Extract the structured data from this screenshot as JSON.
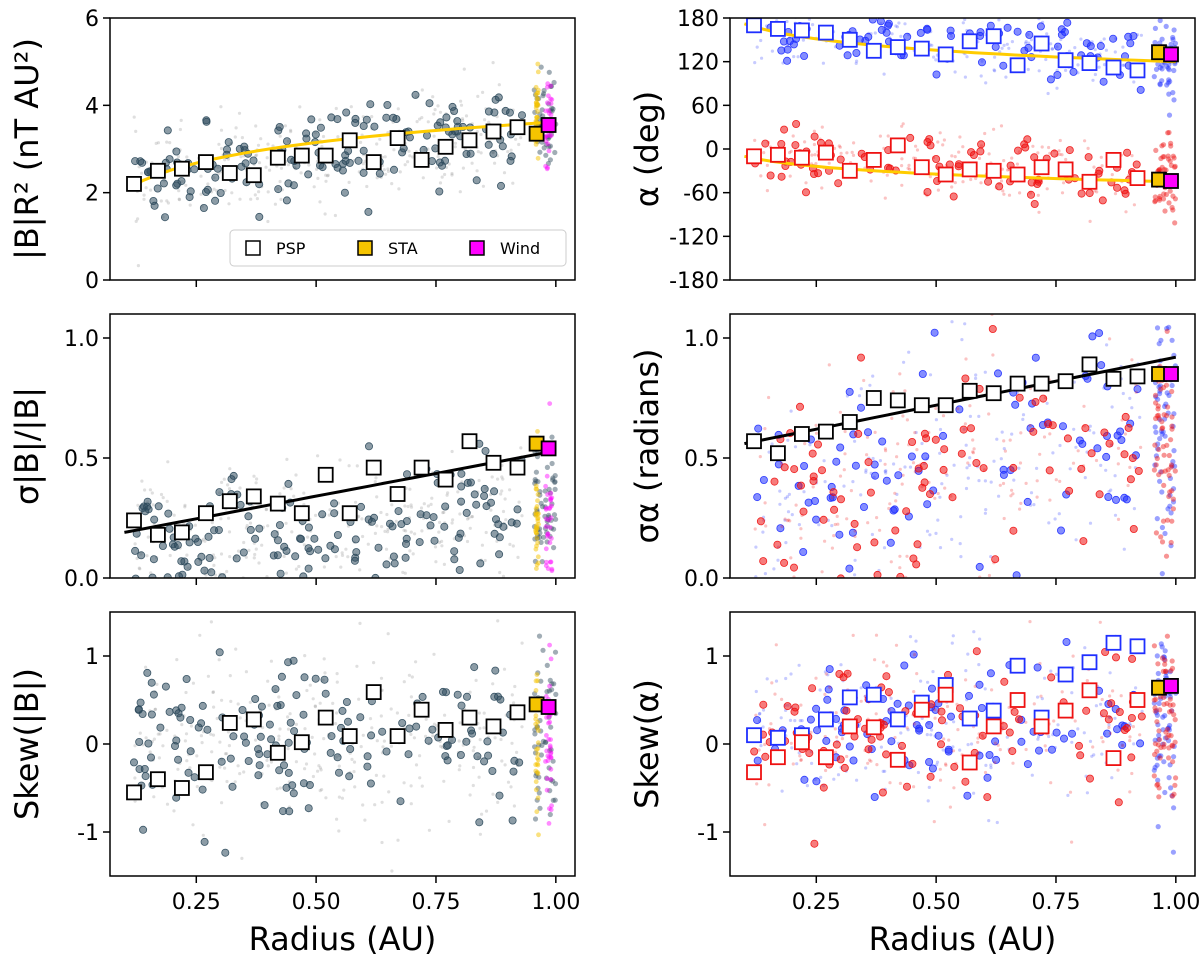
{
  "figure": {
    "xlabel": "Radius (AU)",
    "legend": {
      "position": "bottom-right of top-left panel",
      "entries": [
        "PSP",
        "STA",
        "Wind"
      ]
    },
    "colors": {
      "psp_marker_face": "#ffffff",
      "sta": "#f5c400",
      "wind": "#ff00ff",
      "fit_yellow": "#ffcc00",
      "fit_black": "#000000",
      "scatter_dark": "#2e4a5c",
      "scatter_gray": "#808080",
      "blue_branch": "#1f2fff",
      "red_branch": "#ee1111"
    }
  },
  "chart_data": [
    {
      "id": "B_R2",
      "type": "scatter",
      "ylabel": "|B|R² (nT AU²)",
      "xlim": [
        0.07,
        1.04
      ],
      "ylim": [
        0,
        6
      ],
      "yticks": [
        "0",
        "2",
        "4",
        "6"
      ],
      "xticks": [
        "0.25",
        "0.50",
        "0.75",
        "1.00"
      ],
      "show_xtick_labels": false,
      "cloud": {
        "style": "gray_dark",
        "center": [
          2.2,
          3.6
        ],
        "spread": 0.55
      },
      "series": [
        {
          "name": "PSP",
          "x": [
            0.12,
            0.17,
            0.22,
            0.27,
            0.32,
            0.37,
            0.42,
            0.47,
            0.52,
            0.57,
            0.62,
            0.67,
            0.72,
            0.77,
            0.82,
            0.87,
            0.92
          ],
          "y": [
            2.2,
            2.5,
            2.55,
            2.7,
            2.45,
            2.4,
            2.8,
            2.85,
            2.85,
            3.2,
            2.7,
            3.25,
            2.75,
            3.05,
            3.2,
            3.4,
            3.5
          ]
        },
        {
          "name": "STA",
          "x": [
            0.96
          ],
          "y": [
            3.35
          ]
        },
        {
          "name": "Wind",
          "x": [
            0.985
          ],
          "y": [
            3.55
          ]
        }
      ],
      "fits": [
        {
          "color": "yellow",
          "x": [
            0.11,
            1.0
          ],
          "y": [
            2.12,
            3.62
          ],
          "curve": "power"
        }
      ]
    },
    {
      "id": "alpha",
      "type": "scatter",
      "ylabel": "α (deg)",
      "xlim": [
        0.07,
        1.04
      ],
      "ylim": [
        -180,
        180
      ],
      "yticks": [
        "-180",
        "-120",
        "-60",
        "0",
        "60",
        "120",
        "180"
      ],
      "xticks": [
        "0.25",
        "0.50",
        "0.75",
        "1.00"
      ],
      "show_xtick_labels": false,
      "cloud": {
        "style": "blue_red",
        "blue_center": [
          165,
          125
        ],
        "red_center": [
          -10,
          -40
        ],
        "spread": 25
      },
      "series": [
        {
          "name": "PSP (blue branch)",
          "x": [
            0.12,
            0.17,
            0.22,
            0.27,
            0.32,
            0.37,
            0.42,
            0.47,
            0.52,
            0.57,
            0.62,
            0.67,
            0.72,
            0.77,
            0.82,
            0.87,
            0.92
          ],
          "y": [
            170,
            165,
            163,
            160,
            150,
            135,
            140,
            138,
            130,
            148,
            155,
            115,
            145,
            122,
            118,
            112,
            108
          ]
        },
        {
          "name": "PSP (red branch)",
          "x": [
            0.12,
            0.17,
            0.22,
            0.27,
            0.32,
            0.37,
            0.42,
            0.47,
            0.52,
            0.57,
            0.62,
            0.67,
            0.72,
            0.77,
            0.82,
            0.87,
            0.92
          ],
          "y": [
            -10,
            -8,
            -12,
            -5,
            -30,
            -15,
            5,
            -25,
            -35,
            -28,
            -30,
            -35,
            -25,
            -28,
            -45,
            -15,
            -40
          ]
        },
        {
          "name": "STA",
          "x": [
            0.965,
            0.965
          ],
          "y": [
            133,
            -42
          ]
        },
        {
          "name": "Wind",
          "x": [
            0.99,
            0.99
          ],
          "y": [
            130,
            -44
          ]
        }
      ],
      "fits": [
        {
          "color": "yellow",
          "x": [
            0.1,
            1.0
          ],
          "y": [
            172,
            120
          ],
          "curve": "power"
        },
        {
          "color": "yellow",
          "x": [
            0.1,
            1.0
          ],
          "y": [
            -10,
            -45
          ],
          "curve": "power"
        }
      ]
    },
    {
      "id": "sigma_B",
      "type": "scatter",
      "ylabel": "σ|B|/|B|",
      "xlim": [
        0.07,
        1.04
      ],
      "ylim": [
        0,
        1.1
      ],
      "yticks": [
        "0.0",
        "0.5",
        "1.0"
      ],
      "xticks": [
        "0.25",
        "0.50",
        "0.75",
        "1.00"
      ],
      "show_xtick_labels": false,
      "cloud": {
        "style": "gray_dark",
        "center": [
          0.15,
          0.25
        ],
        "spread": 0.14
      },
      "series": [
        {
          "name": "PSP",
          "x": [
            0.12,
            0.17,
            0.22,
            0.27,
            0.32,
            0.37,
            0.42,
            0.47,
            0.52,
            0.57,
            0.62,
            0.67,
            0.72,
            0.77,
            0.82,
            0.87,
            0.92
          ],
          "y": [
            0.24,
            0.18,
            0.19,
            0.27,
            0.32,
            0.34,
            0.31,
            0.27,
            0.43,
            0.27,
            0.46,
            0.35,
            0.46,
            0.41,
            0.57,
            0.48,
            0.46
          ]
        },
        {
          "name": "STA",
          "x": [
            0.96
          ],
          "y": [
            0.56
          ]
        },
        {
          "name": "Wind",
          "x": [
            0.985
          ],
          "y": [
            0.54
          ]
        }
      ],
      "fits": [
        {
          "color": "black",
          "x": [
            0.1,
            1.0
          ],
          "y": [
            0.19,
            0.53
          ],
          "curve": "linear"
        }
      ]
    },
    {
      "id": "sigma_alpha",
      "type": "scatter",
      "ylabel": "σα (radians)",
      "xlim": [
        0.07,
        1.04
      ],
      "ylim": [
        0,
        1.1
      ],
      "yticks": [
        "0.0",
        "0.5",
        "1.0"
      ],
      "xticks": [
        "0.25",
        "0.50",
        "0.75",
        "1.00"
      ],
      "show_xtick_labels": false,
      "cloud": {
        "style": "blue_red",
        "blue_center": [
          0.3,
          0.6
        ],
        "red_center": [
          0.3,
          0.6
        ],
        "spread": 0.25
      },
      "series": [
        {
          "name": "PSP",
          "x": [
            0.12,
            0.17,
            0.22,
            0.27,
            0.32,
            0.37,
            0.42,
            0.47,
            0.52,
            0.57,
            0.62,
            0.67,
            0.72,
            0.77,
            0.82,
            0.87,
            0.92
          ],
          "y": [
            0.57,
            0.52,
            0.6,
            0.61,
            0.65,
            0.75,
            0.74,
            0.72,
            0.72,
            0.78,
            0.77,
            0.81,
            0.81,
            0.82,
            0.89,
            0.83,
            0.84
          ]
        },
        {
          "name": "STA",
          "x": [
            0.965
          ],
          "y": [
            0.85
          ]
        },
        {
          "name": "Wind",
          "x": [
            0.99
          ],
          "y": [
            0.85
          ]
        }
      ],
      "fits": [
        {
          "color": "black",
          "x": [
            0.1,
            1.0
          ],
          "y": [
            0.56,
            0.92
          ],
          "curve": "linear"
        }
      ]
    },
    {
      "id": "skew_B",
      "type": "scatter",
      "ylabel": "Skew(|B|)",
      "xlim": [
        0.07,
        1.04
      ],
      "ylim": [
        -1.5,
        1.5
      ],
      "yticks": [
        "-1",
        "0",
        "1"
      ],
      "xticks": [
        "0.25",
        "0.50",
        "0.75",
        "1.00"
      ],
      "show_xtick_labels": true,
      "cloud": {
        "style": "gray_dark",
        "center": [
          0.0,
          0.1
        ],
        "spread": 0.5
      },
      "series": [
        {
          "name": "PSP",
          "x": [
            0.12,
            0.17,
            0.22,
            0.27,
            0.32,
            0.37,
            0.42,
            0.47,
            0.52,
            0.57,
            0.62,
            0.67,
            0.72,
            0.77,
            0.82,
            0.87,
            0.92
          ],
          "y": [
            -0.55,
            -0.4,
            -0.5,
            -0.32,
            0.24,
            0.28,
            -0.1,
            0.02,
            0.3,
            0.09,
            0.59,
            0.09,
            0.39,
            0.16,
            0.3,
            0.2,
            0.36
          ]
        },
        {
          "name": "STA",
          "x": [
            0.96
          ],
          "y": [
            0.45
          ]
        },
        {
          "name": "Wind",
          "x": [
            0.985
          ],
          "y": [
            0.42
          ]
        }
      ],
      "fits": []
    },
    {
      "id": "skew_alpha",
      "type": "scatter",
      "ylabel": "Skew(α)",
      "xlim": [
        0.07,
        1.04
      ],
      "ylim": [
        -1.5,
        1.5
      ],
      "yticks": [
        "-1",
        "0",
        "1"
      ],
      "xticks": [
        "0.25",
        "0.50",
        "0.75",
        "1.00"
      ],
      "show_xtick_labels": true,
      "cloud": {
        "style": "blue_red",
        "blue_center": [
          0.1,
          0.3
        ],
        "red_center": [
          0.1,
          0.3
        ],
        "spread": 0.45
      },
      "series": [
        {
          "name": "PSP (blue branch)",
          "x": [
            0.12,
            0.17,
            0.22,
            0.27,
            0.32,
            0.37,
            0.42,
            0.47,
            0.52,
            0.57,
            0.62,
            0.67,
            0.72,
            0.77,
            0.82,
            0.87,
            0.92
          ],
          "y": [
            0.1,
            0.07,
            0.1,
            0.28,
            0.53,
            0.56,
            0.28,
            0.47,
            0.67,
            0.29,
            0.38,
            0.89,
            0.3,
            0.79,
            0.93,
            1.15,
            1.11
          ]
        },
        {
          "name": "PSP (red branch)",
          "x": [
            0.12,
            0.17,
            0.22,
            0.27,
            0.32,
            0.37,
            0.42,
            0.47,
            0.52,
            0.57,
            0.62,
            0.67,
            0.72,
            0.77,
            0.82,
            0.87,
            0.92
          ],
          "y": [
            -0.32,
            -0.15,
            0.02,
            -0.15,
            0.2,
            0.19,
            -0.18,
            0.39,
            0.56,
            -0.21,
            0.2,
            0.5,
            0.2,
            0.38,
            0.61,
            -0.16,
            0.5
          ]
        },
        {
          "name": "STA",
          "x": [
            0.965
          ],
          "y": [
            0.64
          ]
        },
        {
          "name": "Wind",
          "x": [
            0.99
          ],
          "y": [
            0.66
          ]
        }
      ],
      "fits": []
    }
  ]
}
